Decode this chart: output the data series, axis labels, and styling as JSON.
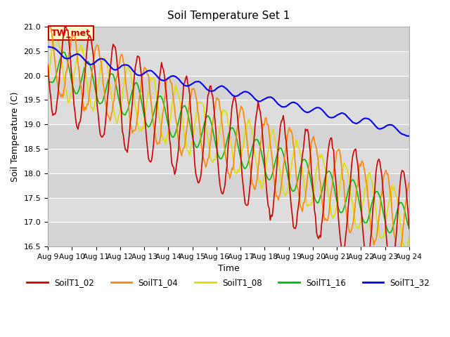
{
  "title": "Soil Temperature Set 1",
  "xlabel": "Time",
  "ylabel": "Soil Temperature (C)",
  "ylim": [
    16.5,
    21.0
  ],
  "annotation_label": "TW_met",
  "colors": {
    "SoilT1_02": "#cc0000",
    "SoilT1_04": "#ff8800",
    "SoilT1_08": "#dddd00",
    "SoilT1_16": "#00bb00",
    "SoilT1_32": "#0000ee"
  },
  "bg_color": "#dddddd",
  "annotation_bg": "#ffffcc",
  "annotation_border": "#cc0000",
  "start_day": 9,
  "end_day": 24,
  "n_points": 360
}
